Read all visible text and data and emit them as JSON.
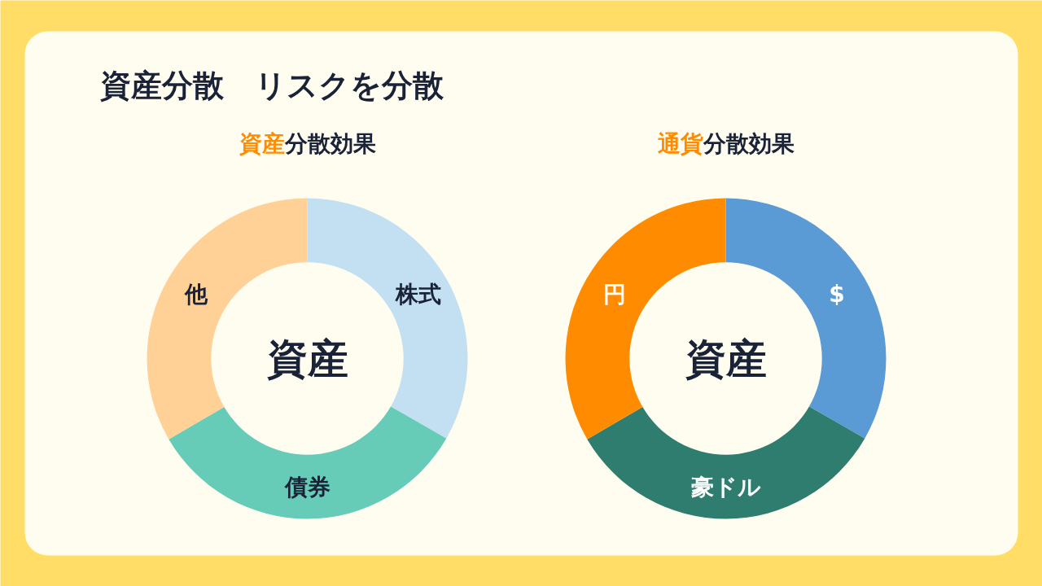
{
  "chart_data": [
    {
      "type": "other",
      "title": "資産分散　リスクを分散"
    },
    {
      "type": "donut",
      "title": "資産分散効果",
      "categories": [
        "株式",
        "債券",
        "他"
      ],
      "values": [
        33.3,
        33.3,
        33.4
      ],
      "colors": [
        "#c2e0f2",
        "#66ccb8",
        "#ffd196"
      ],
      "annotations": [
        "資産"
      ]
    },
    {
      "type": "donut",
      "title": "通貨分散効果",
      "categories": [
        "$",
        "豪ドル",
        "円"
      ],
      "values": [
        33.3,
        33.3,
        33.4
      ],
      "colors": [
        "#5b9bd5",
        "#2e7d6e",
        "#ff8c00"
      ],
      "annotations": [
        "資産"
      ]
    }
  ]
}
